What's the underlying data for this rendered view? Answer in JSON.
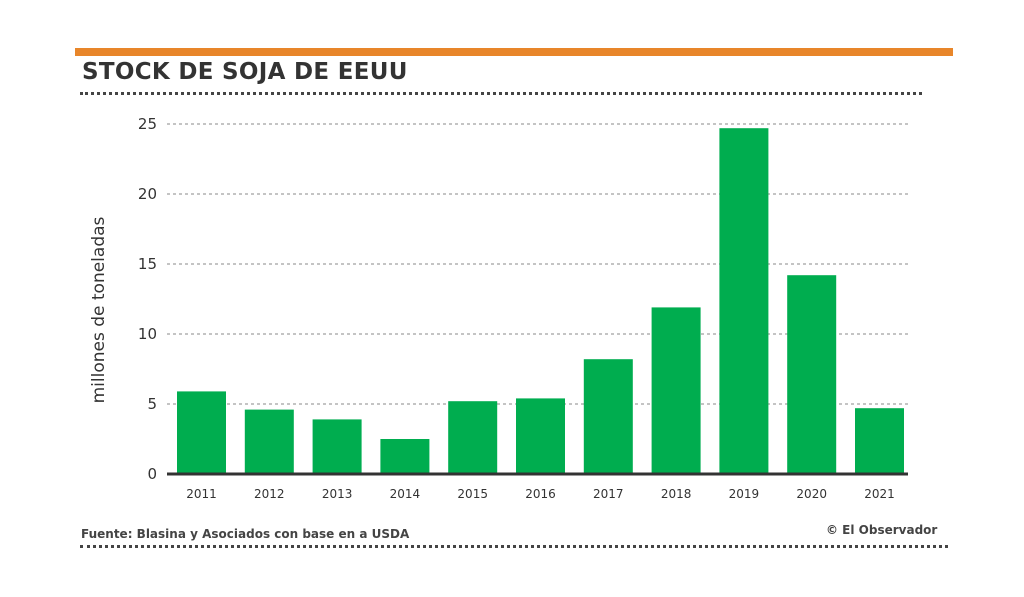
{
  "header": {
    "title": "STOCK DE SOJA DE EEUU",
    "accent_color": "#e8862a"
  },
  "footer": {
    "source": "Fuente: Blasina y Asociados con base en a USDA",
    "credit": "© El Observador"
  },
  "chart_data": {
    "type": "bar",
    "title": "STOCK DE SOJA DE EEUU",
    "xlabel": "",
    "ylabel": "millones de toneladas",
    "categories": [
      "2011",
      "2012",
      "2013",
      "2014",
      "2015",
      "2016",
      "2017",
      "2018",
      "2019",
      "2020",
      "2021"
    ],
    "values": [
      5.9,
      4.6,
      3.9,
      2.5,
      5.2,
      5.4,
      8.2,
      11.9,
      24.7,
      14.2,
      4.7
    ],
    "ylim": [
      0,
      25
    ],
    "yticks": [
      0,
      5,
      10,
      15,
      20,
      25
    ],
    "grid": true,
    "legend": "none",
    "bar_color": "#00ad4f"
  }
}
